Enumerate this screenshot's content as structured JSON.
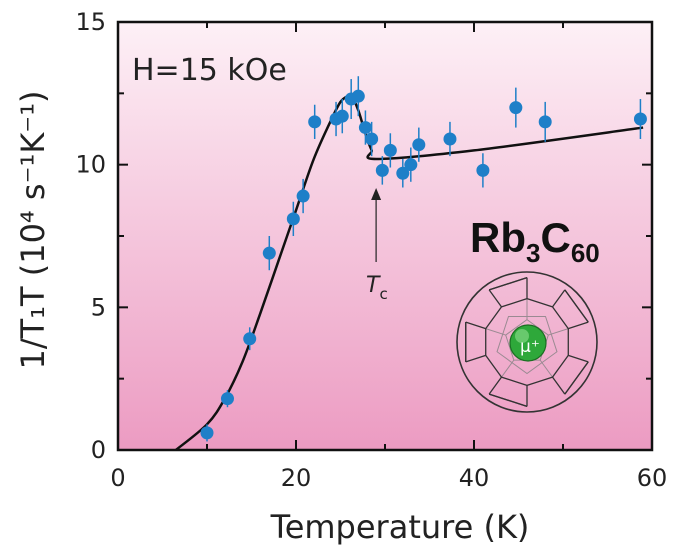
{
  "chart_data": {
    "type": "scatter",
    "xlabel": "Temperature (K)",
    "ylabel": "1/T₁T (10⁴ s⁻¹K⁻¹)",
    "xlim": [
      0,
      60
    ],
    "ylim": [
      0,
      15
    ],
    "xticks": [
      0,
      20,
      40,
      60
    ],
    "yticks": [
      0,
      5,
      10,
      15
    ],
    "x_tick_labels": [
      "0",
      "20",
      "40",
      "60"
    ],
    "y_tick_labels": [
      "0",
      "5",
      "10",
      "15"
    ],
    "grid": false,
    "background_gradient": [
      "#fdf0f6",
      "#ec9bc2"
    ],
    "marker_color": "#1e7fc8",
    "line_color": "#111111",
    "annotations": {
      "field": "H=15 kOe",
      "tc_label_main": "T",
      "tc_label_sub": "c",
      "tc_x": 29,
      "compound_main": "Rb",
      "compound_sub1": "3",
      "compound_c": "C",
      "compound_sub2": "60",
      "muon_label": "μ⁺"
    },
    "series": [
      {
        "kind": "points",
        "x": [
          10.0,
          12.3,
          14.8,
          17.0,
          19.7,
          20.8,
          22.1,
          24.5,
          25.2,
          26.2,
          27.0,
          27.8,
          28.5,
          29.7,
          30.6,
          32.0,
          32.9,
          33.8,
          37.3,
          41.0,
          44.7,
          48.0,
          58.7
        ],
        "y": [
          0.6,
          1.8,
          3.9,
          6.9,
          8.1,
          8.9,
          11.5,
          11.6,
          11.7,
          12.3,
          12.4,
          11.3,
          10.9,
          9.8,
          10.5,
          9.7,
          10.0,
          10.7,
          10.9,
          9.8,
          12.0,
          11.5,
          11.6
        ],
        "yerr": [
          0.3,
          0.3,
          0.4,
          0.6,
          0.6,
          0.6,
          0.6,
          0.6,
          0.6,
          0.7,
          0.7,
          0.6,
          0.6,
          0.5,
          0.6,
          0.5,
          0.6,
          0.6,
          0.6,
          0.6,
          0.7,
          0.7,
          0.7
        ]
      },
      {
        "kind": "fit-line",
        "x": [
          6.5,
          10,
          12,
          14,
          16,
          18,
          20,
          22,
          24,
          25,
          25.8,
          26.3,
          27.0,
          27.5,
          28.0,
          28.5,
          29.0,
          40,
          59
        ],
        "y": [
          -0.3,
          0.9,
          1.8,
          3.1,
          4.8,
          6.6,
          8.4,
          10.2,
          11.6,
          12.2,
          12.4,
          12.4,
          11.9,
          11.4,
          10.9,
          10.5,
          10.2,
          10.5,
          11.3
        ]
      }
    ]
  }
}
